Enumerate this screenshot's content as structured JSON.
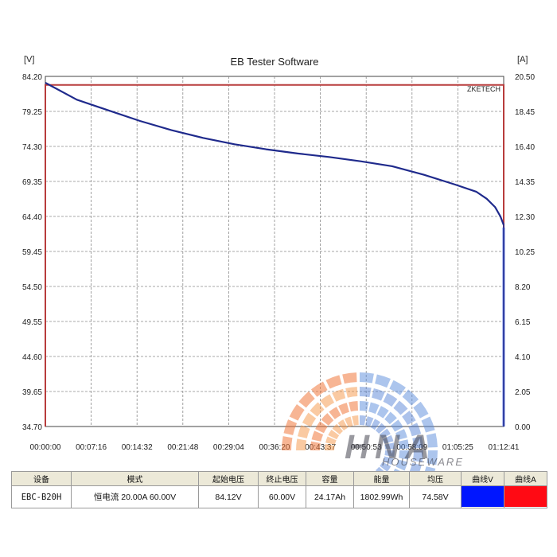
{
  "chart_data": {
    "type": "line",
    "title": "EB Tester Software",
    "y_unit_left": "[V]",
    "y_unit_right": "[A]",
    "brand_tag": "ZKETECH",
    "y_left_ticks": [
      "84.20",
      "79.25",
      "74.30",
      "69.35",
      "64.40",
      "59.45",
      "54.50",
      "49.55",
      "44.60",
      "39.65",
      "34.70"
    ],
    "y_right_ticks": [
      "20.50",
      "18.45",
      "16.40",
      "14.35",
      "12.30",
      "10.25",
      "8.20",
      "6.15",
      "4.10",
      "2.05",
      "0.00"
    ],
    "x_ticks": [
      "00:00:00",
      "00:07:16",
      "00:14:32",
      "00:21:48",
      "00:29:04",
      "00:36:20",
      "00:43:37",
      "00:50:53",
      "00:58:09",
      "01:05:25",
      "01:12:41"
    ],
    "ylim_left": [
      34.7,
      84.2
    ],
    "ylim_right": [
      0.0,
      20.5
    ],
    "xlim_seconds": [
      0,
      4361
    ],
    "grid": true,
    "series": [
      {
        "name": "曲线V",
        "axis": "left",
        "color": "#1f2a8c",
        "x": [
          0,
          300,
          600,
          900,
          1200,
          1500,
          1800,
          2100,
          2400,
          2700,
          3000,
          3300,
          3600,
          3900,
          4100,
          4200,
          4280,
          4330,
          4361
        ],
        "y": [
          83.3,
          80.9,
          79.4,
          77.9,
          76.6,
          75.5,
          74.6,
          73.9,
          73.3,
          72.8,
          72.2,
          71.5,
          70.3,
          68.9,
          67.9,
          66.9,
          65.7,
          64.4,
          63.2
        ]
      },
      {
        "name": "曲线A",
        "axis": "right",
        "color": "#b83c3c",
        "x": [
          0,
          4361
        ],
        "y": [
          20.0,
          20.0
        ]
      }
    ]
  },
  "colors": {
    "voltage_swatch": "#0016ff",
    "current_swatch": "#ff0a14",
    "current_line_end": "#6c82e6"
  },
  "table": {
    "headers": [
      "设备",
      "模式",
      "起始电压",
      "终止电压",
      "容量",
      "能量",
      "均压",
      "曲线V",
      "曲线A"
    ],
    "values": {
      "device": "EBC-B20H",
      "mode": "恒电流 20.00A 60.00V",
      "start_voltage": "84.12V",
      "end_voltage": "60.00V",
      "capacity": "24.17Ah",
      "energy": "1802.99Wh",
      "avg_voltage": "74.58V"
    }
  },
  "watermark": {
    "text": "HNA",
    "subtext": "HOUSEWARE"
  }
}
